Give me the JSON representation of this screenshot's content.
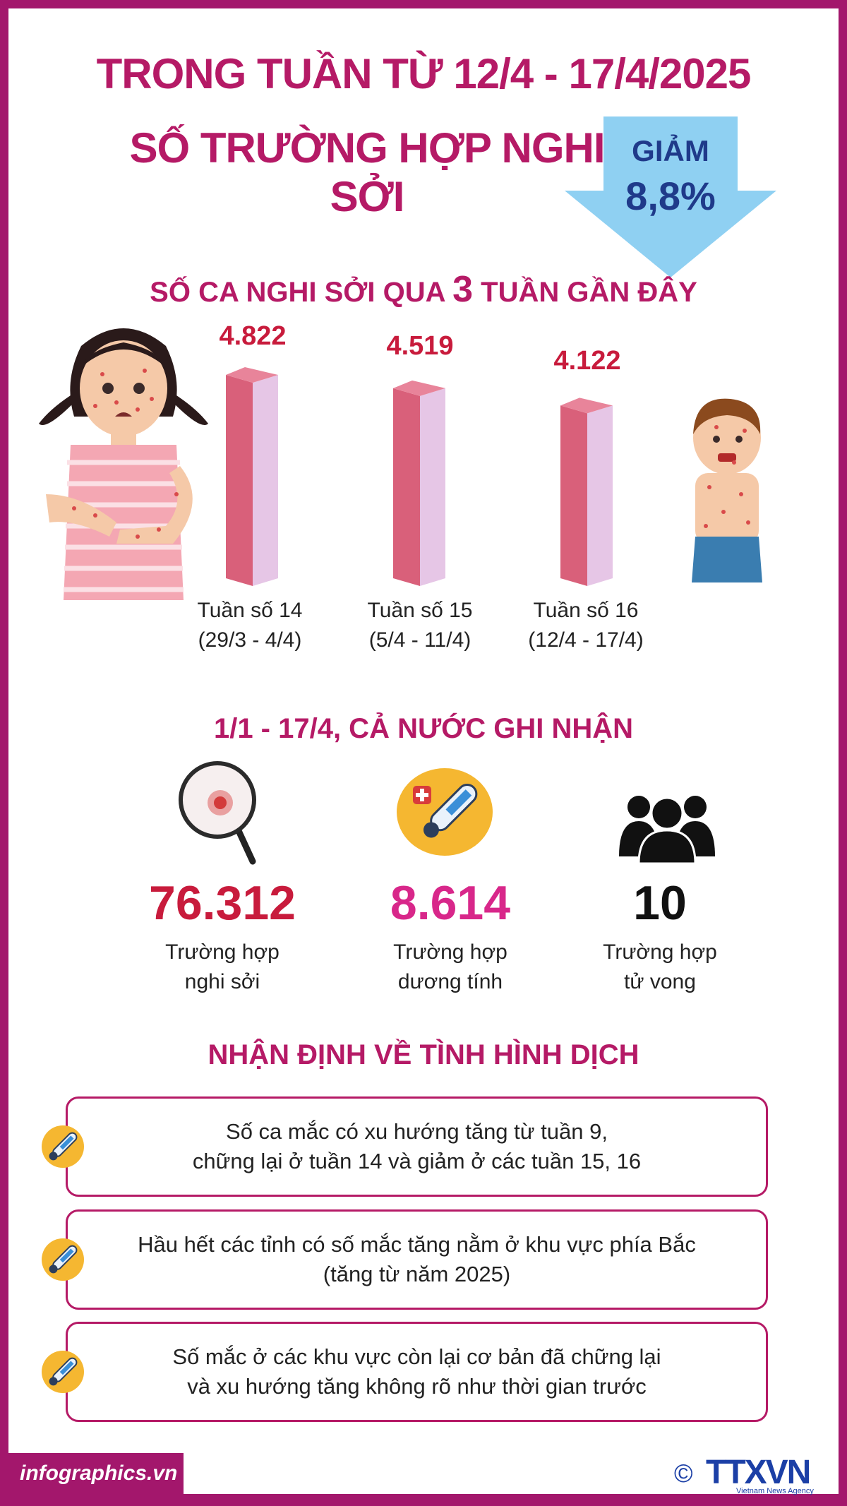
{
  "header": {
    "line1": "TRONG TUẦN TỪ 12/4 - 17/4/2025",
    "line2": "SỐ TRƯỜNG HỢP NGHI SỞI",
    "badge_word": "GIẢM",
    "badge_value": "8,8%"
  },
  "chart_section": {
    "title_pre": "SỐ CA NGHI SỞI QUA ",
    "title_num": "3",
    "title_post": " TUẦN GẦN ĐÂY"
  },
  "chart_data": {
    "type": "bar",
    "categories": [
      "Tuần số 14 (29/3 - 4/4)",
      "Tuần số 15 (5/4 - 11/4)",
      "Tuần số 16 (12/4 - 17/4)"
    ],
    "values": [
      4822,
      4519,
      4122
    ],
    "value_labels": [
      "4.822",
      "4.519",
      "4.122"
    ],
    "week_names": [
      "Tuần số 14",
      "Tuần số 15",
      "Tuần số 16"
    ],
    "week_ranges": [
      "(29/3 - 4/4)",
      "(5/4 - 11/4)",
      "(12/4 - 17/4)"
    ],
    "bar_color": "#d9607a",
    "side_color": "#e6c6e6"
  },
  "totals": {
    "title": "1/1 - 17/4, CẢ NƯỚC GHI NHẬN",
    "items": [
      {
        "value": "76.312",
        "label1": "Trường hợp",
        "label2": "nghi sởi",
        "color": "#c81b3c",
        "icon": "magnifier-icon"
      },
      {
        "value": "8.614",
        "label1": "Trường hợp",
        "label2": "dương tính",
        "color": "#d8278a",
        "icon": "thermometer-icon"
      },
      {
        "value": "10",
        "label1": "Trường hợp",
        "label2": "tử vong",
        "color": "#111111",
        "icon": "people-icon"
      }
    ]
  },
  "assessment": {
    "title": "NHẬN ĐỊNH VỀ TÌNH HÌNH DỊCH",
    "items": [
      {
        "line1": "Số ca mắc có xu hướng tăng từ tuần 9,",
        "line2": "chững lại ở tuần 14 và giảm ở các tuần 15, 16"
      },
      {
        "line1": "Hầu hết các tỉnh có số mắc tăng nằm ở khu vực phía Bắc",
        "line2": "(tăng từ năm 2025)"
      },
      {
        "line1": "Số mắc ở các khu vực còn lại cơ bản đã chững lại",
        "line2": "và xu hướng tăng không rõ như thời gian trước"
      }
    ]
  },
  "footer": {
    "url": "infographics.vn",
    "copyright": "©",
    "agency": "TTXVN",
    "agency_sub": "Vietnam News Agency"
  },
  "colors": {
    "brand": "#a3176c",
    "title": "#b51a66",
    "arrow": "#8fd0f2",
    "arrow_text": "#1f3a8a"
  }
}
